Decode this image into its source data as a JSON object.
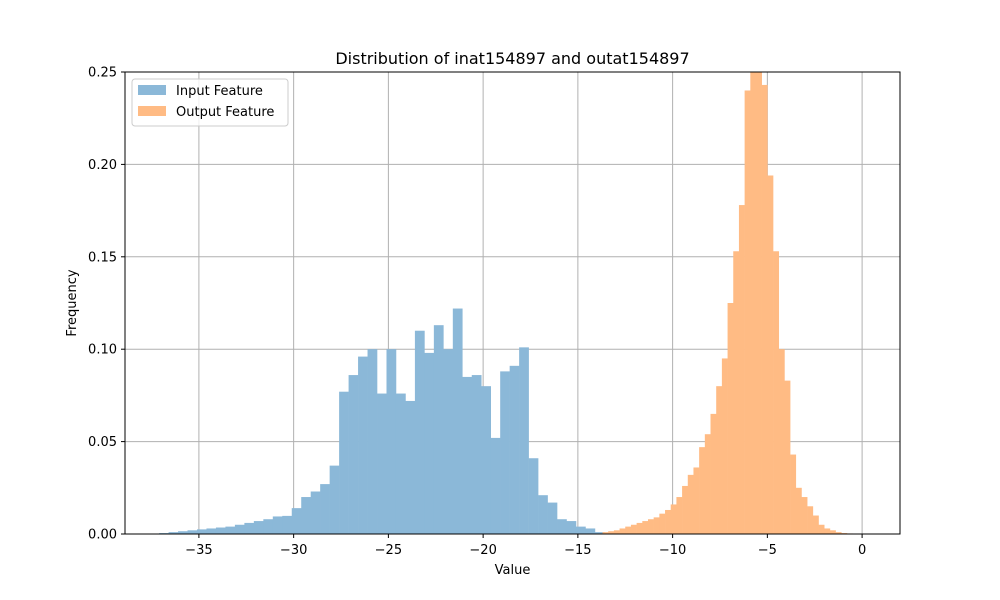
{
  "chart_data": {
    "type": "histogram",
    "title": "Distribution of inat154897 and outat154897",
    "xlabel": "Value",
    "ylabel": "Frequency",
    "xlim": [
      -38.9,
      2.0
    ],
    "ylim": [
      0,
      0.25
    ],
    "xticks": [
      -35,
      -30,
      -25,
      -20,
      -15,
      -10,
      -5,
      0
    ],
    "xtick_labels": [
      "−35",
      "−30",
      "−25",
      "−20",
      "−15",
      "−10",
      "−5",
      "0"
    ],
    "yticks": [
      0,
      0.05,
      0.1,
      0.15,
      0.2,
      0.25
    ],
    "ytick_labels": [
      "0.00",
      "0.05",
      "0.10",
      "0.15",
      "0.20",
      "0.25"
    ],
    "grid": true,
    "legend_position": "top-left",
    "series": [
      {
        "name": "Input Feature",
        "color": "#8bb8d8",
        "bins_start": -37.1,
        "bin_width": 0.5,
        "values": [
          0.0005,
          0.001,
          0.0015,
          0.002,
          0.0025,
          0.003,
          0.0035,
          0.004,
          0.005,
          0.006,
          0.007,
          0.008,
          0.0095,
          0.0098,
          0.014,
          0.02,
          0.023,
          0.027,
          0.037,
          0.077,
          0.086,
          0.096,
          0.1,
          0.076,
          0.1,
          0.076,
          0.072,
          0.11,
          0.098,
          0.113,
          0.1,
          0.122,
          0.085,
          0.086,
          0.08,
          0.052,
          0.088,
          0.091,
          0.101,
          0.041,
          0.021,
          0.017,
          0.008,
          0.007,
          0.004,
          0.003,
          0.001
        ]
      },
      {
        "name": "Output Feature",
        "color": "#ffbb84",
        "bins_start": -13.7,
        "bin_width": 0.3,
        "values": [
          0.001,
          0.0015,
          0.002,
          0.003,
          0.004,
          0.005,
          0.006,
          0.007,
          0.008,
          0.009,
          0.011,
          0.013,
          0.016,
          0.02,
          0.026,
          0.032,
          0.036,
          0.047,
          0.054,
          0.065,
          0.08,
          0.095,
          0.125,
          0.153,
          0.178,
          0.24,
          0.253,
          0.253,
          0.243,
          0.194,
          0.153,
          0.1,
          0.083,
          0.043,
          0.025,
          0.02,
          0.015,
          0.01,
          0.005,
          0.003,
          0.002,
          0.001,
          0.0005,
          0.0003,
          0.0001,
          0.0
        ]
      }
    ]
  }
}
